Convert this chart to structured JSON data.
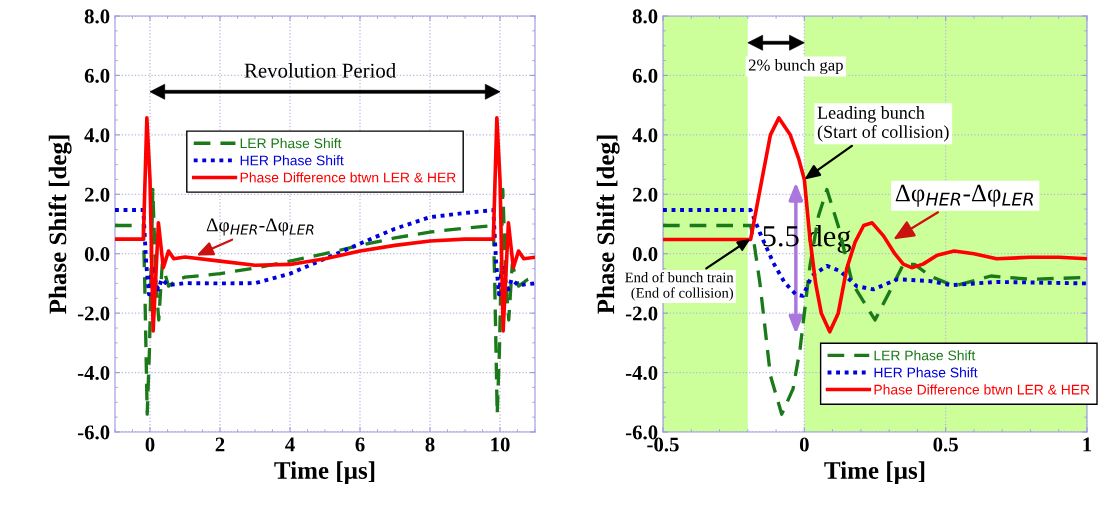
{
  "chart_data": [
    {
      "type": "line",
      "xlabel": "Time [µs]",
      "ylabel": "Phase Shift [deg]",
      "xlim": [
        -1,
        11
      ],
      "ylim": [
        -6,
        8
      ],
      "xticks": [
        0,
        2,
        4,
        6,
        8,
        10
      ],
      "yticks": [
        {
          "value": -6,
          "label": "-6.0"
        },
        {
          "value": -4,
          "label": "-4.0"
        },
        {
          "value": -2,
          "label": "-2.0"
        },
        {
          "value": 0,
          "label": "0.0"
        },
        {
          "value": 2,
          "label": "2.0"
        },
        {
          "value": 4,
          "label": "4.0"
        },
        {
          "value": 6,
          "label": "6.0"
        },
        {
          "value": 8,
          "label": "8.0"
        }
      ],
      "grid": true,
      "legend": "top",
      "marker": "none",
      "annotations": [
        "Revolution Period",
        {
          "text": "Δφ$_{HER}$-Δφ$_{LER}$",
          "x": 1.33,
          "y": -0.06
        }
      ],
      "series": [
        {
          "name": "LER Phase Shift",
          "color": "#1a7a1a",
          "line_style": "dashed",
          "x": [
            -1,
            -0.19,
            -0.15,
            -0.08,
            -0.015,
            0.08,
            0.17,
            0.25,
            0.35,
            0.53,
            0.8,
            1,
            2,
            3,
            4,
            5,
            6,
            7,
            8,
            9,
            9.81,
            9.85,
            9.92,
            9.985,
            10.08,
            10.17,
            10.25,
            10.35,
            10.53,
            10.8,
            11
          ],
          "values": [
            0.95,
            0.95,
            -1.0,
            -5.4,
            -3.2,
            2.16,
            -1.0,
            -2.23,
            -0.36,
            -1.09,
            -0.86,
            -0.79,
            -0.67,
            -0.48,
            -0.25,
            0,
            0.28,
            0.53,
            0.73,
            0.86,
            0.95,
            -1.0,
            -5.4,
            -3.2,
            2.16,
            -1.0,
            -2.23,
            -0.36,
            -1.09,
            -0.86,
            -0.8
          ]
        },
        {
          "name": "HER Phase Shift",
          "color": "#0000dd",
          "line_style": "dotted",
          "x": [
            -1,
            -0.19,
            -0.11,
            -0.03,
            0.026,
            0.08,
            0.185,
            0.244,
            0.33,
            0.52,
            1,
            2,
            3,
            4,
            5,
            6,
            7,
            8,
            9,
            9.81,
            9.89,
            9.97,
            10.026,
            10.08,
            10.185,
            10.244,
            10.33,
            10.52,
            11
          ],
          "values": [
            1.47,
            1.47,
            -0.3,
            -1.37,
            -0.75,
            -0.41,
            -1.09,
            -1.2,
            -0.86,
            -1.06,
            -0.99,
            -1.0,
            -0.99,
            -0.67,
            -0.17,
            0.34,
            0.84,
            1.23,
            1.37,
            1.47,
            -0.3,
            -1.37,
            -0.75,
            -0.41,
            -1.09,
            -1.2,
            -0.86,
            -1.06,
            -1.0
          ]
        },
        {
          "name": "Phase Difference btwn LER & HER",
          "color": "#ff0000",
          "line_style": "solid",
          "x": [
            -1,
            -0.19,
            -0.09,
            0,
            0.09,
            0.24,
            0.38,
            0.53,
            0.68,
            1,
            2,
            3,
            4,
            5,
            6,
            7,
            8,
            9,
            9.81,
            9.91,
            10,
            10.09,
            10.24,
            10.38,
            10.53,
            10.68,
            11
          ],
          "values": [
            0.49,
            0.49,
            4.57,
            2.5,
            -2.6,
            1.04,
            -0.47,
            0.09,
            -0.17,
            -0.11,
            -0.25,
            -0.39,
            -0.36,
            -0.17,
            0.09,
            0.28,
            0.43,
            0.49,
            0.49,
            4.57,
            2.5,
            -2.6,
            1.04,
            -0.47,
            0.09,
            -0.17,
            -0.12
          ]
        }
      ]
    },
    {
      "type": "line",
      "xlabel": "Time [µs]",
      "ylabel": "Phase Shift [deg]",
      "xlim": [
        -0.5,
        1
      ],
      "ylim": [
        -6,
        8
      ],
      "xticks": [
        -0.5,
        0,
        0.5,
        1
      ],
      "yticks": [
        {
          "value": -6,
          "label": "-6.0"
        },
        {
          "value": -4,
          "label": "-4.0"
        },
        {
          "value": -2,
          "label": "-2.0"
        },
        {
          "value": 0,
          "label": "0.0"
        },
        {
          "value": 2,
          "label": "2.0"
        },
        {
          "value": 4,
          "label": "4.0"
        },
        {
          "value": 6,
          "label": "6.0"
        },
        {
          "value": 8,
          "label": "8.0"
        }
      ],
      "grid": true,
      "legend": "bottom right",
      "marker": "none",
      "bands": [
        {
          "axis": "x",
          "from": -0.5,
          "to": -0.2,
          "color": "#ccff99"
        },
        {
          "axis": "x",
          "from": 0,
          "to": 1,
          "color": "#ccff99"
        }
      ],
      "annotations": [
        "2% bunch gap",
        {
          "text": "Leading bunch\n(Start of collision)",
          "x": 0.0,
          "y": 2.5
        },
        {
          "text": "End of bunch train\n(End of collision)",
          "x": -0.19,
          "y": 0.5
        },
        {
          "text": "Δφ$_{HER}$-Δφ$_{LER}$",
          "x": 0.315,
          "y": 0.48
        },
        "5.5 deg"
      ],
      "series": [
        {
          "name": "LER Phase Shift",
          "color": "#1a7a1a",
          "line_style": "dashed",
          "x": [
            -0.5,
            -0.19,
            -0.18,
            -0.157,
            -0.12,
            -0.08,
            -0.04,
            -0.015,
            0.02,
            0.05,
            0.08,
            0.12,
            0.17,
            0.25,
            0.3,
            0.35,
            0.39,
            0.445,
            0.53,
            0.66,
            0.8,
            1.0
          ],
          "values": [
            0.95,
            0.95,
            0.5,
            -1.0,
            -4.1,
            -5.4,
            -4.55,
            -3.2,
            -0.4,
            1.27,
            2.16,
            0.93,
            -1.0,
            -2.23,
            -1.31,
            -0.36,
            -0.36,
            -0.75,
            -1.09,
            -0.75,
            -0.86,
            -0.8
          ]
        },
        {
          "name": "HER Phase Shift",
          "color": "#0000dd",
          "line_style": "dotted",
          "x": [
            -0.5,
            -0.19,
            -0.157,
            -0.11,
            -0.07,
            -0.03,
            -0.005,
            0.026,
            0.08,
            0.126,
            0.185,
            0.244,
            0.33,
            0.445,
            0.52,
            0.68,
            1.0
          ],
          "values": [
            1.47,
            1.47,
            0.7,
            -0.3,
            -0.97,
            -1.37,
            -1.42,
            -0.75,
            -0.41,
            -0.58,
            -1.09,
            -1.2,
            -0.86,
            -0.92,
            -1.06,
            -0.95,
            -1.0
          ]
        },
        {
          "name": "Phase Difference btwn LER & HER",
          "color": "#ff0000",
          "line_style": "solid",
          "x": [
            -0.5,
            -0.19,
            -0.15,
            -0.12,
            -0.09,
            -0.05,
            -0.02,
            0,
            0.02,
            0.04,
            0.06,
            0.09,
            0.12,
            0.15,
            0.18,
            0.21,
            0.24,
            0.28,
            0.32,
            0.35,
            0.38,
            0.42,
            0.47,
            0.53,
            0.6,
            0.68,
            0.8,
            0.9,
            1.0
          ],
          "values": [
            0.48,
            0.48,
            2.5,
            4.0,
            4.57,
            4.0,
            3.2,
            2.5,
            0.5,
            -1.0,
            -2.0,
            -2.63,
            -2.0,
            -0.5,
            0.4,
            0.95,
            1.04,
            0.6,
            0.0,
            -0.35,
            -0.47,
            -0.35,
            -0.05,
            0.09,
            0.0,
            -0.17,
            -0.12,
            -0.12,
            -0.17
          ]
        }
      ]
    }
  ]
}
